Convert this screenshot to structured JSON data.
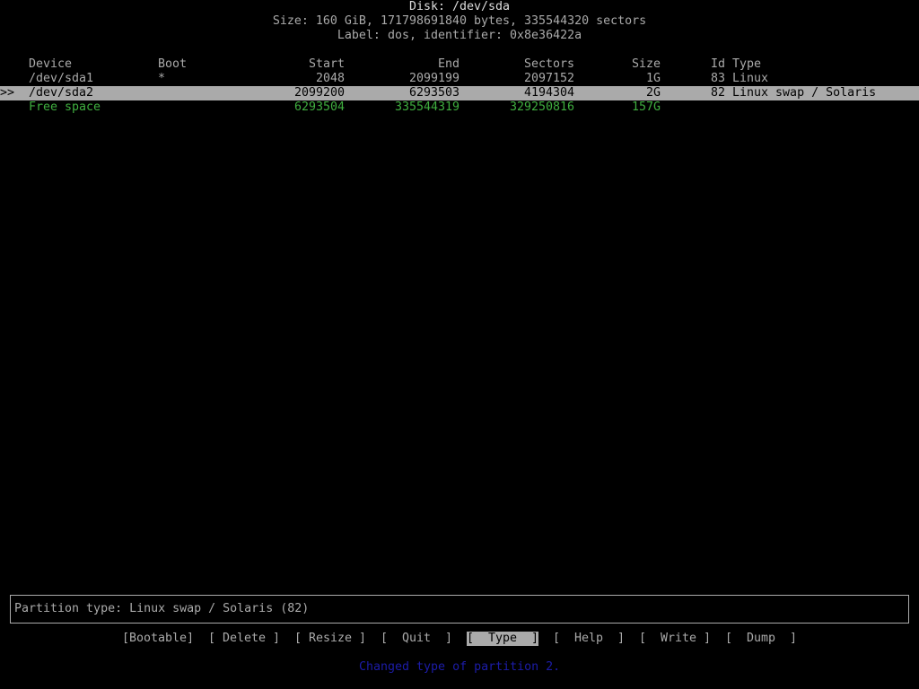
{
  "header": {
    "disk": "Disk: /dev/sda",
    "size": "Size: 160 GiB, 171798691840 bytes, 335544320 sectors",
    "label": "Label: dos, identifier: 0x8e36422a"
  },
  "table": {
    "columns": {
      "device": "Device",
      "boot": "Boot",
      "start": "Start",
      "end": "End",
      "sectors": "Sectors",
      "size": "Size",
      "idtype": "Id Type"
    },
    "cursor": ">>",
    "rows": [
      {
        "device": "/dev/sda1",
        "boot": "*",
        "start": "2048",
        "end": "2099199",
        "sectors": "2097152",
        "size": "1G",
        "idtype": "83 Linux"
      },
      {
        "device": "/dev/sda2",
        "boot": "",
        "start": "2099200",
        "end": "6293503",
        "sectors": "4194304",
        "size": "2G",
        "idtype": "82 Linux swap / Solaris"
      },
      {
        "device": "Free space",
        "boot": "",
        "start": "6293504",
        "end": "335544319",
        "sectors": "329250816",
        "size": "157G",
        "idtype": ""
      }
    ],
    "selected_row": 1
  },
  "info": "Partition type: Linux swap / Solaris (82)",
  "menu": [
    "[Bootable]",
    "[ Delete ]",
    "[ Resize ]",
    "[  Quit  ]",
    "[  Type  ]",
    "[  Help  ]",
    "[  Write ]",
    "[  Dump  ]"
  ],
  "menu_active": 4,
  "status": "Changed type of partition 2.",
  "colors": {
    "text": "#aaaaaa",
    "highlight": "#aaaaaa",
    "free": "#3fae3f",
    "status": "#1c1ca8"
  }
}
